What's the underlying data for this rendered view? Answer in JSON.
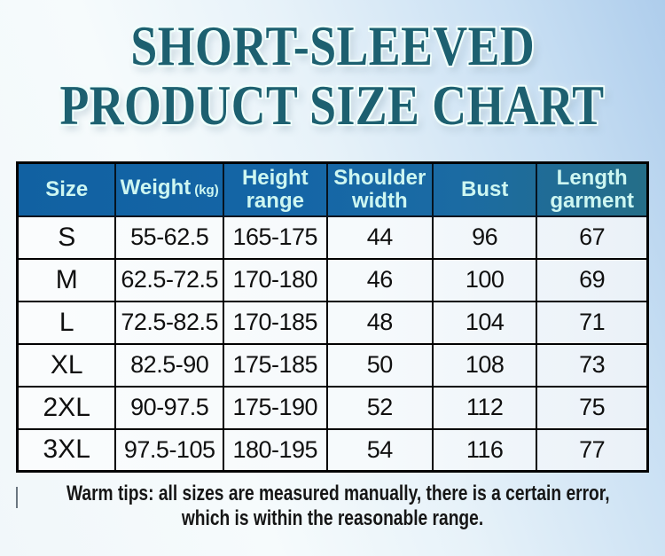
{
  "title": {
    "line1": "SHORT-SLEEVED",
    "line2": "PRODUCT SIZE CHART"
  },
  "table": {
    "column_keys": [
      "size",
      "weight",
      "height-range",
      "shoulder-width",
      "bust",
      "length-garment"
    ],
    "headers": [
      {
        "line1": "Size",
        "line2": "",
        "suffix": ""
      },
      {
        "line1": "Weight",
        "line2": "",
        "suffix": "(kg)"
      },
      {
        "line1": "Height",
        "line2": "range",
        "suffix": ""
      },
      {
        "line1": "Shoulder",
        "line2": "width",
        "suffix": ""
      },
      {
        "line1": "Bust",
        "line2": "",
        "suffix": ""
      },
      {
        "line1": "Length",
        "line2": "garment",
        "suffix": ""
      }
    ],
    "rows": [
      {
        "cells": [
          "S",
          "55-62.5",
          "165-175",
          "44",
          "96",
          "67"
        ]
      },
      {
        "cells": [
          "M",
          "62.5-72.5",
          "170-180",
          "46",
          "100",
          "69"
        ]
      },
      {
        "cells": [
          "L",
          "72.5-82.5",
          "170-185",
          "48",
          "104",
          "71"
        ]
      },
      {
        "cells": [
          "XL",
          "82.5-90",
          "175-185",
          "50",
          "108",
          "73"
        ]
      },
      {
        "cells": [
          "2XL",
          "90-97.5",
          "175-190",
          "52",
          "112",
          "75"
        ]
      },
      {
        "cells": [
          "3XL",
          "97.5-105",
          "180-195",
          "54",
          "116",
          "77"
        ]
      }
    ]
  },
  "footer": {
    "line1": "Warm tips: all sizes are measured manually, there is a certain error,",
    "line2": "which is within the reasonable range."
  },
  "colors": {
    "title_text": "#1d6070",
    "header_bg_left": "#1161a2",
    "header_bg_right": "#256e88",
    "header_text": "#cdf6f1",
    "table_border": "#000000",
    "body_text": "#101010",
    "background_blue": "#aecdec"
  }
}
